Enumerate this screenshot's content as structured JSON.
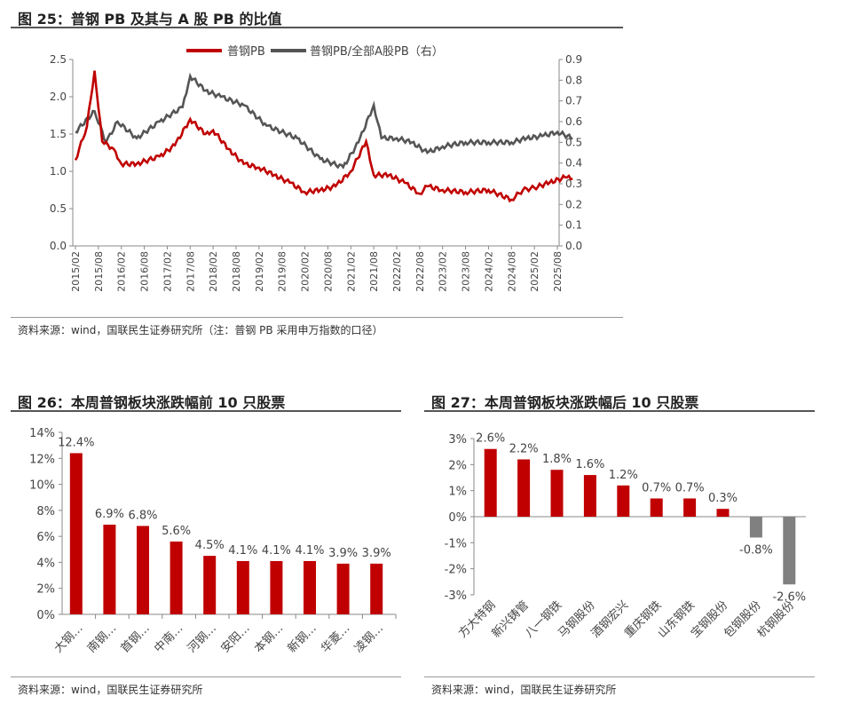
{
  "chart_data": [
    {
      "type": "line",
      "title": "图 25：普钢 PB 及其与 A 股 PB 的比值",
      "legend": [
        "普钢PB",
        "普钢PB/全部A股PB（右）"
      ],
      "legend_position": "top",
      "y_ticks": [
        "0.0",
        "0.5",
        "1.0",
        "1.5",
        "2.0",
        "2.5"
      ],
      "ylim": [
        0,
        2.5
      ],
      "y2_ticks": [
        "0.0",
        "0.1",
        "0.2",
        "0.3",
        "0.4",
        "0.5",
        "0.6",
        "0.7",
        "0.8",
        "0.9"
      ],
      "y2lim": [
        0,
        0.9
      ],
      "x_ticks": [
        "2015/02",
        "2015/08",
        "2016/02",
        "2016/08",
        "2017/02",
        "2017/08",
        "2018/02",
        "2018/08",
        "2019/02",
        "2019/08",
        "2020/02",
        "2020/08",
        "2021/02",
        "2021/08",
        "2022/02",
        "2022/08",
        "2023/02",
        "2023/08",
        "2024/02",
        "2024/08",
        "2025/02",
        "2025/08"
      ],
      "series": [
        {
          "name": "普钢PB",
          "color": "#c00000",
          "axis": "left",
          "x_months": [
            0,
            3,
            5,
            7,
            10,
            12,
            16,
            22,
            26,
            30,
            34,
            36,
            40,
            44,
            48,
            52,
            56,
            60,
            64,
            68,
            72,
            76,
            78,
            82,
            86,
            90,
            92,
            96,
            102,
            108,
            114,
            117,
            120,
            124,
            128,
            130
          ],
          "values": [
            1.15,
            1.6,
            2.35,
            1.4,
            1.3,
            1.1,
            1.1,
            1.2,
            1.35,
            1.7,
            1.5,
            1.55,
            1.3,
            1.1,
            1.05,
            0.95,
            0.85,
            0.72,
            0.75,
            0.8,
            1.0,
            1.4,
            0.95,
            0.95,
            0.85,
            0.7,
            0.8,
            0.75,
            0.72,
            0.75,
            0.62,
            0.75,
            0.78,
            0.85,
            0.92,
            0.9
          ]
        },
        {
          "name": "普钢PB/全部A股PB（右）",
          "color": "#555555",
          "axis": "right",
          "x_months": [
            0,
            5,
            8,
            11,
            16,
            22,
            28,
            30,
            34,
            38,
            44,
            50,
            58,
            64,
            70,
            74,
            78,
            80,
            84,
            88,
            92,
            96,
            102,
            108,
            114,
            118,
            122,
            126,
            130
          ],
          "values": [
            0.55,
            0.65,
            0.5,
            0.6,
            0.52,
            0.6,
            0.67,
            0.82,
            0.75,
            0.72,
            0.68,
            0.58,
            0.52,
            0.42,
            0.38,
            0.5,
            0.68,
            0.52,
            0.52,
            0.5,
            0.45,
            0.48,
            0.5,
            0.5,
            0.5,
            0.52,
            0.53,
            0.55,
            0.52
          ]
        }
      ]
    },
    {
      "type": "bar",
      "title": "图 26：本周普钢板块涨跌幅前 10 只股票",
      "categories": [
        "大钢…",
        "南钢…",
        "首钢…",
        "中南…",
        "河钢…",
        "安阳…",
        "本钢…",
        "新钢…",
        "华菱…",
        "凌钢…"
      ],
      "values": [
        12.4,
        6.9,
        6.8,
        5.6,
        4.5,
        4.1,
        4.1,
        4.1,
        3.9,
        3.9
      ],
      "labels": [
        "12.4%",
        "6.9%",
        "6.8%",
        "5.6%",
        "4.5%",
        "4.1%",
        "4.1%",
        "4.1%",
        "3.9%",
        "3.9%"
      ],
      "y_ticks": [
        "0%",
        "2%",
        "4%",
        "6%",
        "8%",
        "10%",
        "12%",
        "14%"
      ],
      "ylim": [
        0,
        14
      ]
    },
    {
      "type": "bar",
      "title": "图 27：本周普钢板块涨跌幅后 10 只股票",
      "categories": [
        "方大特钢",
        "新兴铸管",
        "八一钢铁",
        "马钢股份",
        "酒钢宏兴",
        "重庆钢铁",
        "山东钢铁",
        "宝钢股份",
        "包钢股份",
        "杭钢股份"
      ],
      "values": [
        2.6,
        2.2,
        1.8,
        1.6,
        1.2,
        0.7,
        0.7,
        0.3,
        -0.8,
        -2.6
      ],
      "labels": [
        "2.6%",
        "2.2%",
        "1.8%",
        "1.6%",
        "1.2%",
        "0.7%",
        "0.7%",
        "0.3%",
        "-0.8%",
        "-2.6%"
      ],
      "y_ticks": [
        "-3%",
        "-2%",
        "-1%",
        "0%",
        "1%",
        "2%",
        "3%"
      ],
      "ylim": [
        -3,
        3
      ]
    }
  ],
  "sources": {
    "s25": "资料来源：wind，国联民生证券研究所（注：普钢 PB 采用申万指数的口径）",
    "s26": "资料来源：wind，国联民生证券研究所",
    "s27": "资料来源：wind，国联民生证券研究所"
  },
  "colors": {
    "red": "#c00000",
    "grey": "#808080",
    "dark": "#555555"
  }
}
